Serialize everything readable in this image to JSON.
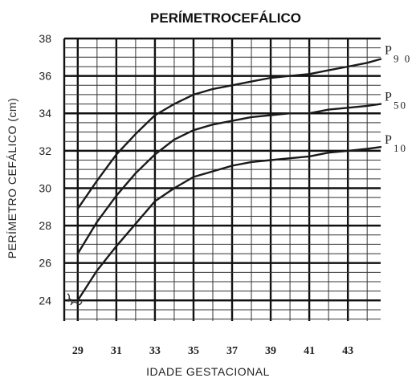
{
  "chart_data": {
    "type": "line",
    "title": "PERÍMETROCEFÁLICO",
    "xlabel": "IDADE  GESTACIONAL",
    "ylabel": "PERÍMETRO CEFÁLICO (cm)",
    "xlim": [
      28.3,
      44.7
    ],
    "ylim": [
      22.9,
      38
    ],
    "xticks": [
      "29",
      "31",
      "33",
      "35",
      "37",
      "39",
      "41",
      "43"
    ],
    "yticks": [
      "24",
      "26",
      "28",
      "30",
      "32",
      "34",
      "36",
      "38"
    ],
    "grid": true,
    "series": [
      {
        "name": "P",
        "sub": "9 0",
        "x": [
          29,
          30,
          31,
          32,
          33,
          34,
          35,
          36,
          37,
          38,
          39,
          40,
          41,
          42,
          43,
          44,
          44.7
        ],
        "y": [
          28.9,
          30.4,
          31.8,
          32.9,
          33.9,
          34.5,
          35.0,
          35.3,
          35.5,
          35.7,
          35.9,
          36.0,
          36.1,
          36.3,
          36.5,
          36.7,
          36.9
        ]
      },
      {
        "name": "P",
        "sub": "50",
        "x": [
          29,
          30,
          31,
          32,
          33,
          34,
          35,
          36,
          37,
          38,
          39,
          40,
          41,
          42,
          43,
          44,
          44.7
        ],
        "y": [
          26.5,
          28.2,
          29.6,
          30.8,
          31.8,
          32.6,
          33.1,
          33.4,
          33.6,
          33.8,
          33.9,
          34.0,
          34.0,
          34.2,
          34.3,
          34.4,
          34.5
        ]
      },
      {
        "name": "P",
        "sub": "10",
        "x": [
          29,
          30,
          31,
          32,
          33,
          34,
          35,
          36,
          37,
          38,
          39,
          40,
          41,
          42,
          43,
          44,
          44.7
        ],
        "y": [
          24.0,
          25.6,
          26.9,
          28.1,
          29.3,
          30.0,
          30.6,
          30.9,
          31.2,
          31.4,
          31.5,
          31.6,
          31.7,
          31.9,
          32.0,
          32.1,
          32.2
        ]
      }
    ]
  }
}
